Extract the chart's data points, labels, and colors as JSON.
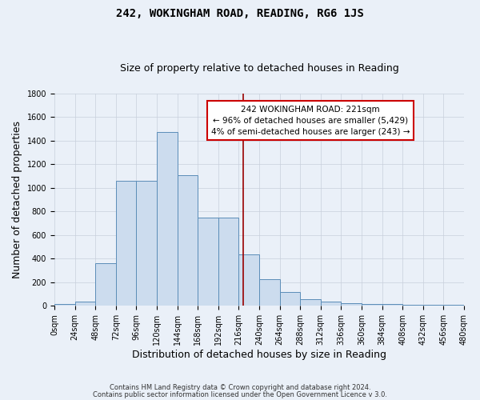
{
  "title": "242, WOKINGHAM ROAD, READING, RG6 1JS",
  "subtitle": "Size of property relative to detached houses in Reading",
  "xlabel": "Distribution of detached houses by size in Reading",
  "ylabel": "Number of detached properties",
  "bin_edges": [
    0,
    24,
    48,
    72,
    96,
    120,
    144,
    168,
    192,
    216,
    240,
    264,
    288,
    312,
    336,
    360,
    384,
    408,
    432,
    456,
    480
  ],
  "bar_heights": [
    15,
    35,
    360,
    1060,
    1060,
    1470,
    1110,
    750,
    750,
    440,
    225,
    115,
    55,
    40,
    25,
    20,
    15,
    13,
    13,
    13
  ],
  "bar_color": "#ccdcee",
  "bar_edge_color": "#5b8db8",
  "grid_color": "#c8d0dc",
  "background_color": "#eaf0f8",
  "vline_x": 221,
  "vline_color": "#990000",
  "annotation_text": "242 WOKINGHAM ROAD: 221sqm\n← 96% of detached houses are smaller (5,429)\n4% of semi-detached houses are larger (243) →",
  "annotation_box_color": "#ffffff",
  "annotation_box_edge": "#cc0000",
  "ylim": [
    0,
    1800
  ],
  "yticks": [
    0,
    200,
    400,
    600,
    800,
    1000,
    1200,
    1400,
    1600,
    1800
  ],
  "xtick_labels": [
    "0sqm",
    "24sqm",
    "48sqm",
    "72sqm",
    "96sqm",
    "120sqm",
    "144sqm",
    "168sqm",
    "192sqm",
    "216sqm",
    "240sqm",
    "264sqm",
    "288sqm",
    "312sqm",
    "336sqm",
    "360sqm",
    "384sqm",
    "408sqm",
    "432sqm",
    "456sqm",
    "480sqm"
  ],
  "footer_line1": "Contains HM Land Registry data © Crown copyright and database right 2024.",
  "footer_line2": "Contains public sector information licensed under the Open Government Licence v 3.0.",
  "title_fontsize": 10,
  "subtitle_fontsize": 9,
  "axis_label_fontsize": 9,
  "tick_fontsize": 7,
  "footer_fontsize": 6,
  "annot_fontsize": 7.5
}
